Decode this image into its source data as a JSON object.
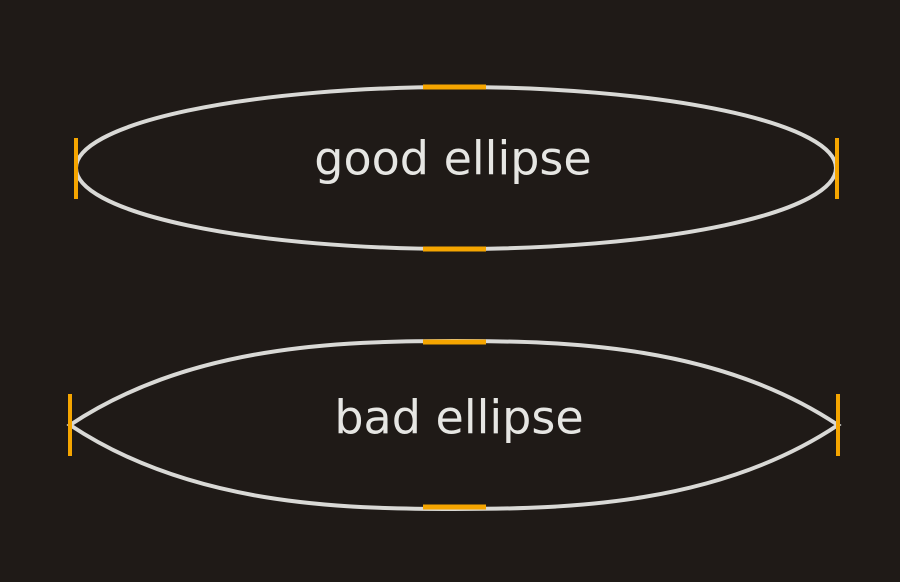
{
  "colors": {
    "background": "#1f1a17",
    "outline": "#d9d9d6",
    "accent": "#f5a500",
    "text": "#e6e6e3"
  },
  "shapes": [
    {
      "id": "good",
      "label": "good ellipse",
      "style": "smooth-ellipse"
    },
    {
      "id": "bad",
      "label": "bad ellipse",
      "style": "pointed-ellipse"
    }
  ]
}
